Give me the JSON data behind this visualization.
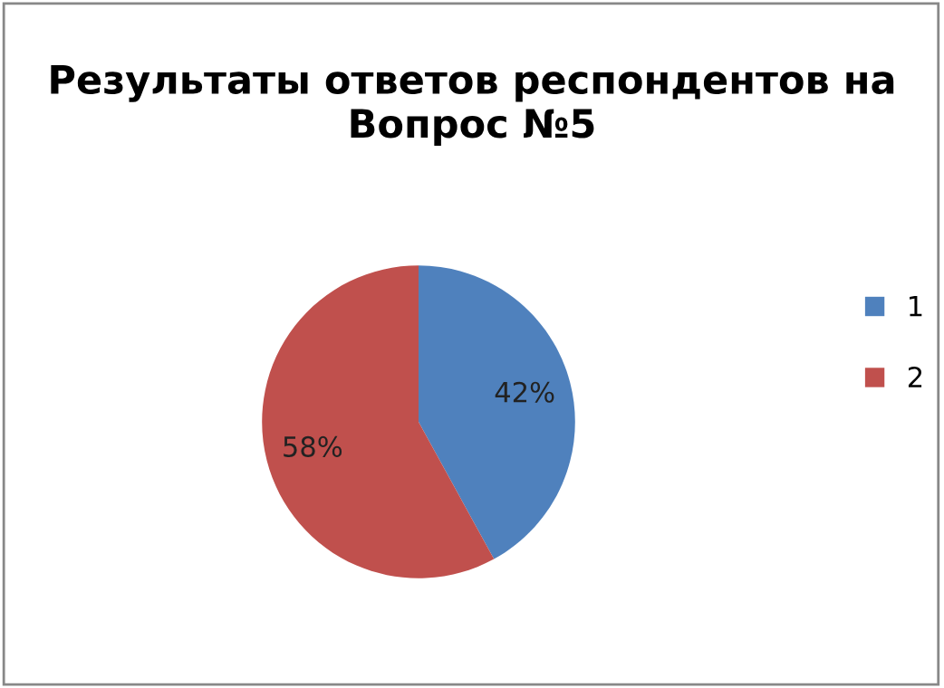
{
  "chart_data": {
    "type": "pie",
    "title": "Результаты ответов респондентов на Вопрос №5",
    "categories": [
      "1",
      "2"
    ],
    "values": [
      42,
      58
    ],
    "colors": [
      "#4f81bd",
      "#c0504d"
    ],
    "value_labels": [
      "42%",
      "58%"
    ],
    "legend": "right"
  }
}
